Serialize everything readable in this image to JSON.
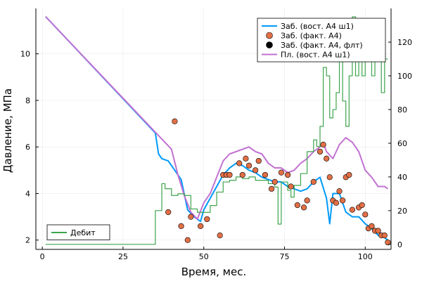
{
  "chart_data": {
    "type": "line",
    "xlabel": "Время, мес.",
    "ylabel_left": "Давление, МПа",
    "ylabel_right": "",
    "xlim": [
      -2,
      108
    ],
    "ylim_left": [
      1.6,
      11.95
    ],
    "ylim_right": [
      -3,
      140
    ],
    "x_ticks": [
      0,
      25,
      50,
      75,
      100
    ],
    "x_tick_labels": [
      "0",
      "25",
      "50",
      "75",
      "100"
    ],
    "y_ticks_left": [
      2,
      4,
      6,
      8,
      10
    ],
    "y_tick_labels_left": [
      "2",
      "4",
      "6",
      "8",
      "10"
    ],
    "y_ticks_right": [
      0,
      20,
      40,
      60,
      80,
      100,
      120
    ],
    "y_tick_labels_right": [
      "0",
      "20",
      "40",
      "60",
      "80",
      "100",
      "120"
    ],
    "grid": true,
    "legend_top_right": {
      "placement": "top-right",
      "entries": [
        {
          "label": "Заб. (вост. А4 ш1)",
          "color": "#009AF9",
          "kind": "line"
        },
        {
          "label": "Заб. (факт. А4)",
          "color": "#E26F46",
          "kind": "marker"
        },
        {
          "label": "Заб. (факт. А4, флт)",
          "color": "#000000",
          "kind": "marker"
        },
        {
          "label": "Пл. (вост. А4 ш1)",
          "color": "#C271D2",
          "kind": "line"
        }
      ]
    },
    "legend_bottom_left": {
      "placement": "bottom-left",
      "entries": [
        {
          "label": "Дебит",
          "color": "#3DA44D",
          "kind": "line"
        }
      ]
    },
    "series": [
      {
        "name": "Заб. (вост. А4 ш1)",
        "axis": "left",
        "color": "#009AF9",
        "x": [
          1,
          35,
          36,
          37,
          39,
          41,
          43,
          45,
          47,
          49,
          50,
          52,
          54,
          56,
          58,
          60,
          62,
          64,
          66,
          68,
          70,
          72,
          74,
          76,
          78,
          80,
          82,
          84,
          86,
          88,
          89,
          90,
          92,
          94,
          96,
          98,
          100,
          102,
          104,
          106,
          107
        ],
        "y": [
          11.6,
          6.6,
          5.7,
          5.5,
          5.4,
          5.0,
          4.6,
          3.3,
          3.0,
          2.8,
          3.3,
          3.8,
          4.3,
          4.8,
          5.1,
          5.3,
          5.2,
          5.0,
          4.9,
          4.7,
          4.6,
          4.5,
          4.5,
          4.3,
          4.2,
          4.1,
          4.2,
          4.5,
          4.7,
          3.8,
          2.7,
          4.0,
          4.0,
          3.2,
          3.0,
          3.0,
          2.7,
          2.5,
          2.2,
          2.1,
          2.0
        ]
      },
      {
        "name": "Пл. (вост. А4 ш1)",
        "axis": "left",
        "color": "#C271D2",
        "x": [
          1,
          40,
          42,
          44,
          46,
          48,
          50,
          52,
          54,
          56,
          58,
          60,
          62,
          64,
          66,
          68,
          70,
          72,
          74,
          76,
          78,
          80,
          82,
          84,
          86,
          87,
          88,
          90,
          92,
          94,
          96,
          98,
          100,
          102,
          104,
          106,
          107
        ],
        "y": [
          11.6,
          5.9,
          4.8,
          3.9,
          3.2,
          2.9,
          3.6,
          4.0,
          4.7,
          5.4,
          5.7,
          5.8,
          5.9,
          6.0,
          5.8,
          5.7,
          5.3,
          5.1,
          5.1,
          4.9,
          5.0,
          5.3,
          5.5,
          5.8,
          6.0,
          6.2,
          5.8,
          5.5,
          6.1,
          6.4,
          6.2,
          5.8,
          5.0,
          4.7,
          4.3,
          4.3,
          4.2
        ]
      },
      {
        "name": "Дебит",
        "axis": "right",
        "color": "#3DA44D",
        "kind": "step",
        "x": [
          1,
          35,
          37,
          38,
          40,
          42,
          44,
          46,
          48,
          50,
          52,
          54,
          56,
          58,
          60,
          62,
          64,
          66,
          68,
          70,
          72,
          73,
          74,
          76,
          77,
          78,
          80,
          82,
          84,
          85,
          86,
          87,
          88,
          89,
          90,
          91,
          92,
          93,
          94,
          95,
          96,
          97,
          98,
          99,
          100,
          101,
          102,
          103,
          104,
          105,
          106,
          107
        ],
        "y": [
          0,
          20,
          36,
          33,
          29,
          30,
          29,
          21,
          19,
          19,
          23,
          31,
          37,
          38,
          40,
          39,
          40,
          38,
          38,
          36,
          34,
          12,
          37,
          32,
          28,
          35,
          42,
          55,
          62,
          58,
          70,
          105,
          100,
          75,
          80,
          90,
          110,
          85,
          70,
          100,
          135,
          100,
          130,
          100,
          120,
          115,
          100,
          112,
          116,
          90,
          110,
          110
        ]
      }
    ],
    "scatter_series": [
      {
        "name": "Заб. (факт. А4)",
        "axis": "left",
        "color": "#E26F46",
        "x": [
          39,
          41,
          43,
          45,
          46,
          49,
          51,
          55,
          56,
          57,
          58,
          61,
          62,
          63,
          64,
          66,
          67,
          69,
          71,
          72,
          74,
          76,
          77,
          79,
          81,
          82,
          84,
          86,
          87,
          88,
          89,
          90,
          91,
          92,
          93,
          94,
          95,
          96,
          98,
          99,
          100,
          101,
          102,
          103,
          104,
          105,
          106,
          107
        ],
        "y": [
          3.2,
          7.1,
          2.6,
          2.0,
          3.0,
          2.6,
          2.9,
          2.2,
          4.8,
          4.8,
          4.8,
          5.3,
          4.8,
          5.5,
          5.2,
          5.0,
          5.4,
          4.8,
          4.2,
          4.5,
          4.9,
          4.8,
          4.3,
          3.5,
          3.4,
          3.7,
          4.5,
          5.8,
          6.1,
          5.5,
          4.7,
          3.7,
          3.6,
          4.1,
          3.7,
          4.7,
          4.8,
          3.3,
          3.4,
          3.5,
          3.1,
          2.5,
          2.6,
          2.4,
          2.4,
          2.2,
          2.2,
          1.9
        ]
      },
      {
        "name": "Заб. (факт. А4, флт)",
        "axis": "left",
        "color": "#000000",
        "x": [],
        "y": []
      }
    ]
  }
}
